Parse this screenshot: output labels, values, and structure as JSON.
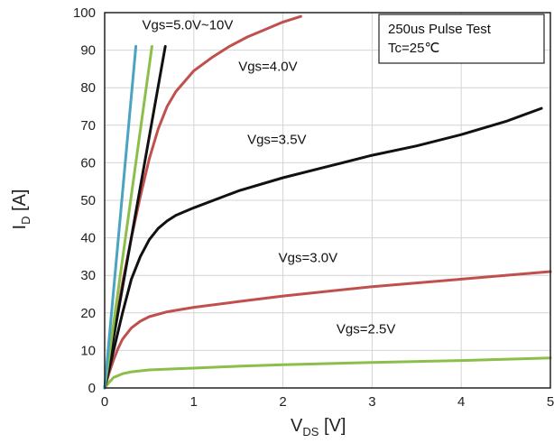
{
  "chart_data": {
    "type": "line",
    "xlabel_main": "V",
    "xlabel_sub": "DS",
    "xlabel_unit": " [V]",
    "ylabel_main": "I",
    "ylabel_sub": "D",
    "ylabel_unit": " [A]",
    "xlim": [
      0,
      5
    ],
    "ylim": [
      0,
      100
    ],
    "xticks": [
      0,
      1,
      2,
      3,
      4,
      5
    ],
    "yticks": [
      0,
      10,
      20,
      30,
      40,
      50,
      60,
      70,
      80,
      90,
      100
    ],
    "grid": true,
    "note_lines": [
      "250us Pulse Test",
      "Tc=25℃"
    ],
    "series": [
      {
        "name": "Vgs=2.5V",
        "color": "#8cbf4a",
        "x": [
          0,
          0.05,
          0.1,
          0.2,
          0.3,
          0.5,
          0.8,
          1,
          1.5,
          2,
          3,
          4,
          5
        ],
        "y": [
          0,
          1.5,
          2.8,
          3.8,
          4.3,
          4.8,
          5.1,
          5.3,
          5.8,
          6.2,
          6.8,
          7.3,
          8
        ]
      },
      {
        "name": "Vgs=3.0V",
        "color": "#c0504d",
        "x": [
          0,
          0.05,
          0.1,
          0.15,
          0.2,
          0.3,
          0.4,
          0.5,
          0.7,
          1,
          1.5,
          2,
          3,
          4,
          5
        ],
        "y": [
          0,
          4,
          7.5,
          10.5,
          13,
          16,
          17.8,
          19,
          20.3,
          21.5,
          23,
          24.5,
          27,
          29,
          31
        ]
      },
      {
        "name": "Vgs=3.5V",
        "color": "#111111",
        "x": [
          0,
          0.1,
          0.2,
          0.3,
          0.4,
          0.5,
          0.6,
          0.7,
          0.8,
          1,
          1.5,
          2,
          2.5,
          3,
          3.5,
          4,
          4.5,
          4.9
        ],
        "y": [
          0,
          10,
          20,
          29,
          35,
          39.5,
          42.5,
          44.5,
          46,
          48,
          52.5,
          56,
          59,
          62,
          64.5,
          67.5,
          71,
          74.5
        ]
      },
      {
        "name": "Vgs=4.0V",
        "color": "#c0504d",
        "x": [
          0,
          0.1,
          0.2,
          0.3,
          0.4,
          0.5,
          0.6,
          0.7,
          0.8,
          1,
          1.2,
          1.4,
          1.6,
          1.8,
          2,
          2.2
        ],
        "y": [
          0,
          14,
          28,
          40,
          51,
          61,
          69,
          75,
          79,
          84.5,
          88,
          91,
          93.5,
          95.5,
          97.5,
          99
        ]
      },
      {
        "name": "Vgs=5.0V~10V",
        "color": "#111111",
        "x": [
          0,
          0.68
        ],
        "y": [
          0,
          91
        ]
      },
      {
        "name": "",
        "color": "#8cbf4a",
        "x": [
          0,
          0.53
        ],
        "y": [
          0,
          91
        ]
      },
      {
        "name": "",
        "color": "#4aa3c0",
        "x": [
          0,
          0.35
        ],
        "y": [
          0,
          91
        ]
      }
    ],
    "annotations": [
      {
        "text": "Vgs=5.0V~10V",
        "x": 0.42,
        "y": 95.5
      },
      {
        "text": "Vgs=4.0V",
        "x": 1.5,
        "y": 84.5
      },
      {
        "text": "Vgs=3.5V",
        "x": 1.6,
        "y": 65
      },
      {
        "text": "Vgs=3.0V",
        "x": 1.95,
        "y": 33.5
      },
      {
        "text": "Vgs=2.5V",
        "x": 2.6,
        "y": 14.5
      }
    ]
  }
}
